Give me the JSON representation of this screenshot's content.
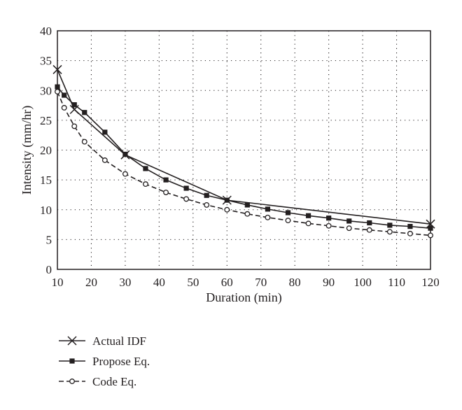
{
  "chart_data": {
    "type": "line",
    "title": "",
    "xlabel": "Duration (min)",
    "ylabel": "Intensity (mm/hr)",
    "xlim": [
      10,
      120
    ],
    "ylim": [
      0,
      40
    ],
    "xticks": [
      10,
      20,
      30,
      40,
      50,
      60,
      70,
      80,
      90,
      100,
      110,
      120
    ],
    "yticks": [
      0,
      5,
      10,
      15,
      20,
      25,
      30,
      35,
      40
    ],
    "grid": "dotted",
    "legend_position": "below",
    "series": [
      {
        "name": "Actual IDF",
        "marker": "x",
        "line": "solid",
        "color": "#231f20",
        "x": [
          10,
          15,
          30,
          60,
          120
        ],
        "y": [
          33.5,
          26.8,
          19.2,
          11.6,
          7.6
        ]
      },
      {
        "name": "Propose Eq.",
        "marker": "square",
        "line": "solid",
        "color": "#231f20",
        "x": [
          10,
          12,
          15,
          18,
          24,
          30,
          36,
          42,
          48,
          54,
          60,
          66,
          72,
          78,
          84,
          90,
          96,
          102,
          108,
          114,
          120
        ],
        "y": [
          30.6,
          29.2,
          27.6,
          26.3,
          23.0,
          19.3,
          16.9,
          15.0,
          13.6,
          12.4,
          11.6,
          10.8,
          10.1,
          9.5,
          9.0,
          8.6,
          8.1,
          7.8,
          7.4,
          7.2,
          6.9
        ]
      },
      {
        "name": "Code Eq.",
        "marker": "circle",
        "line": "dashed",
        "color": "#231f20",
        "x": [
          10,
          12,
          15,
          18,
          24,
          30,
          36,
          42,
          48,
          54,
          60,
          66,
          72,
          78,
          84,
          90,
          96,
          102,
          108,
          114,
          120
        ],
        "y": [
          29.8,
          27.1,
          24.0,
          21.4,
          18.3,
          16.0,
          14.3,
          12.9,
          11.8,
          10.8,
          10.0,
          9.3,
          8.7,
          8.2,
          7.7,
          7.3,
          6.9,
          6.6,
          6.3,
          6.0,
          5.7
        ]
      }
    ]
  }
}
